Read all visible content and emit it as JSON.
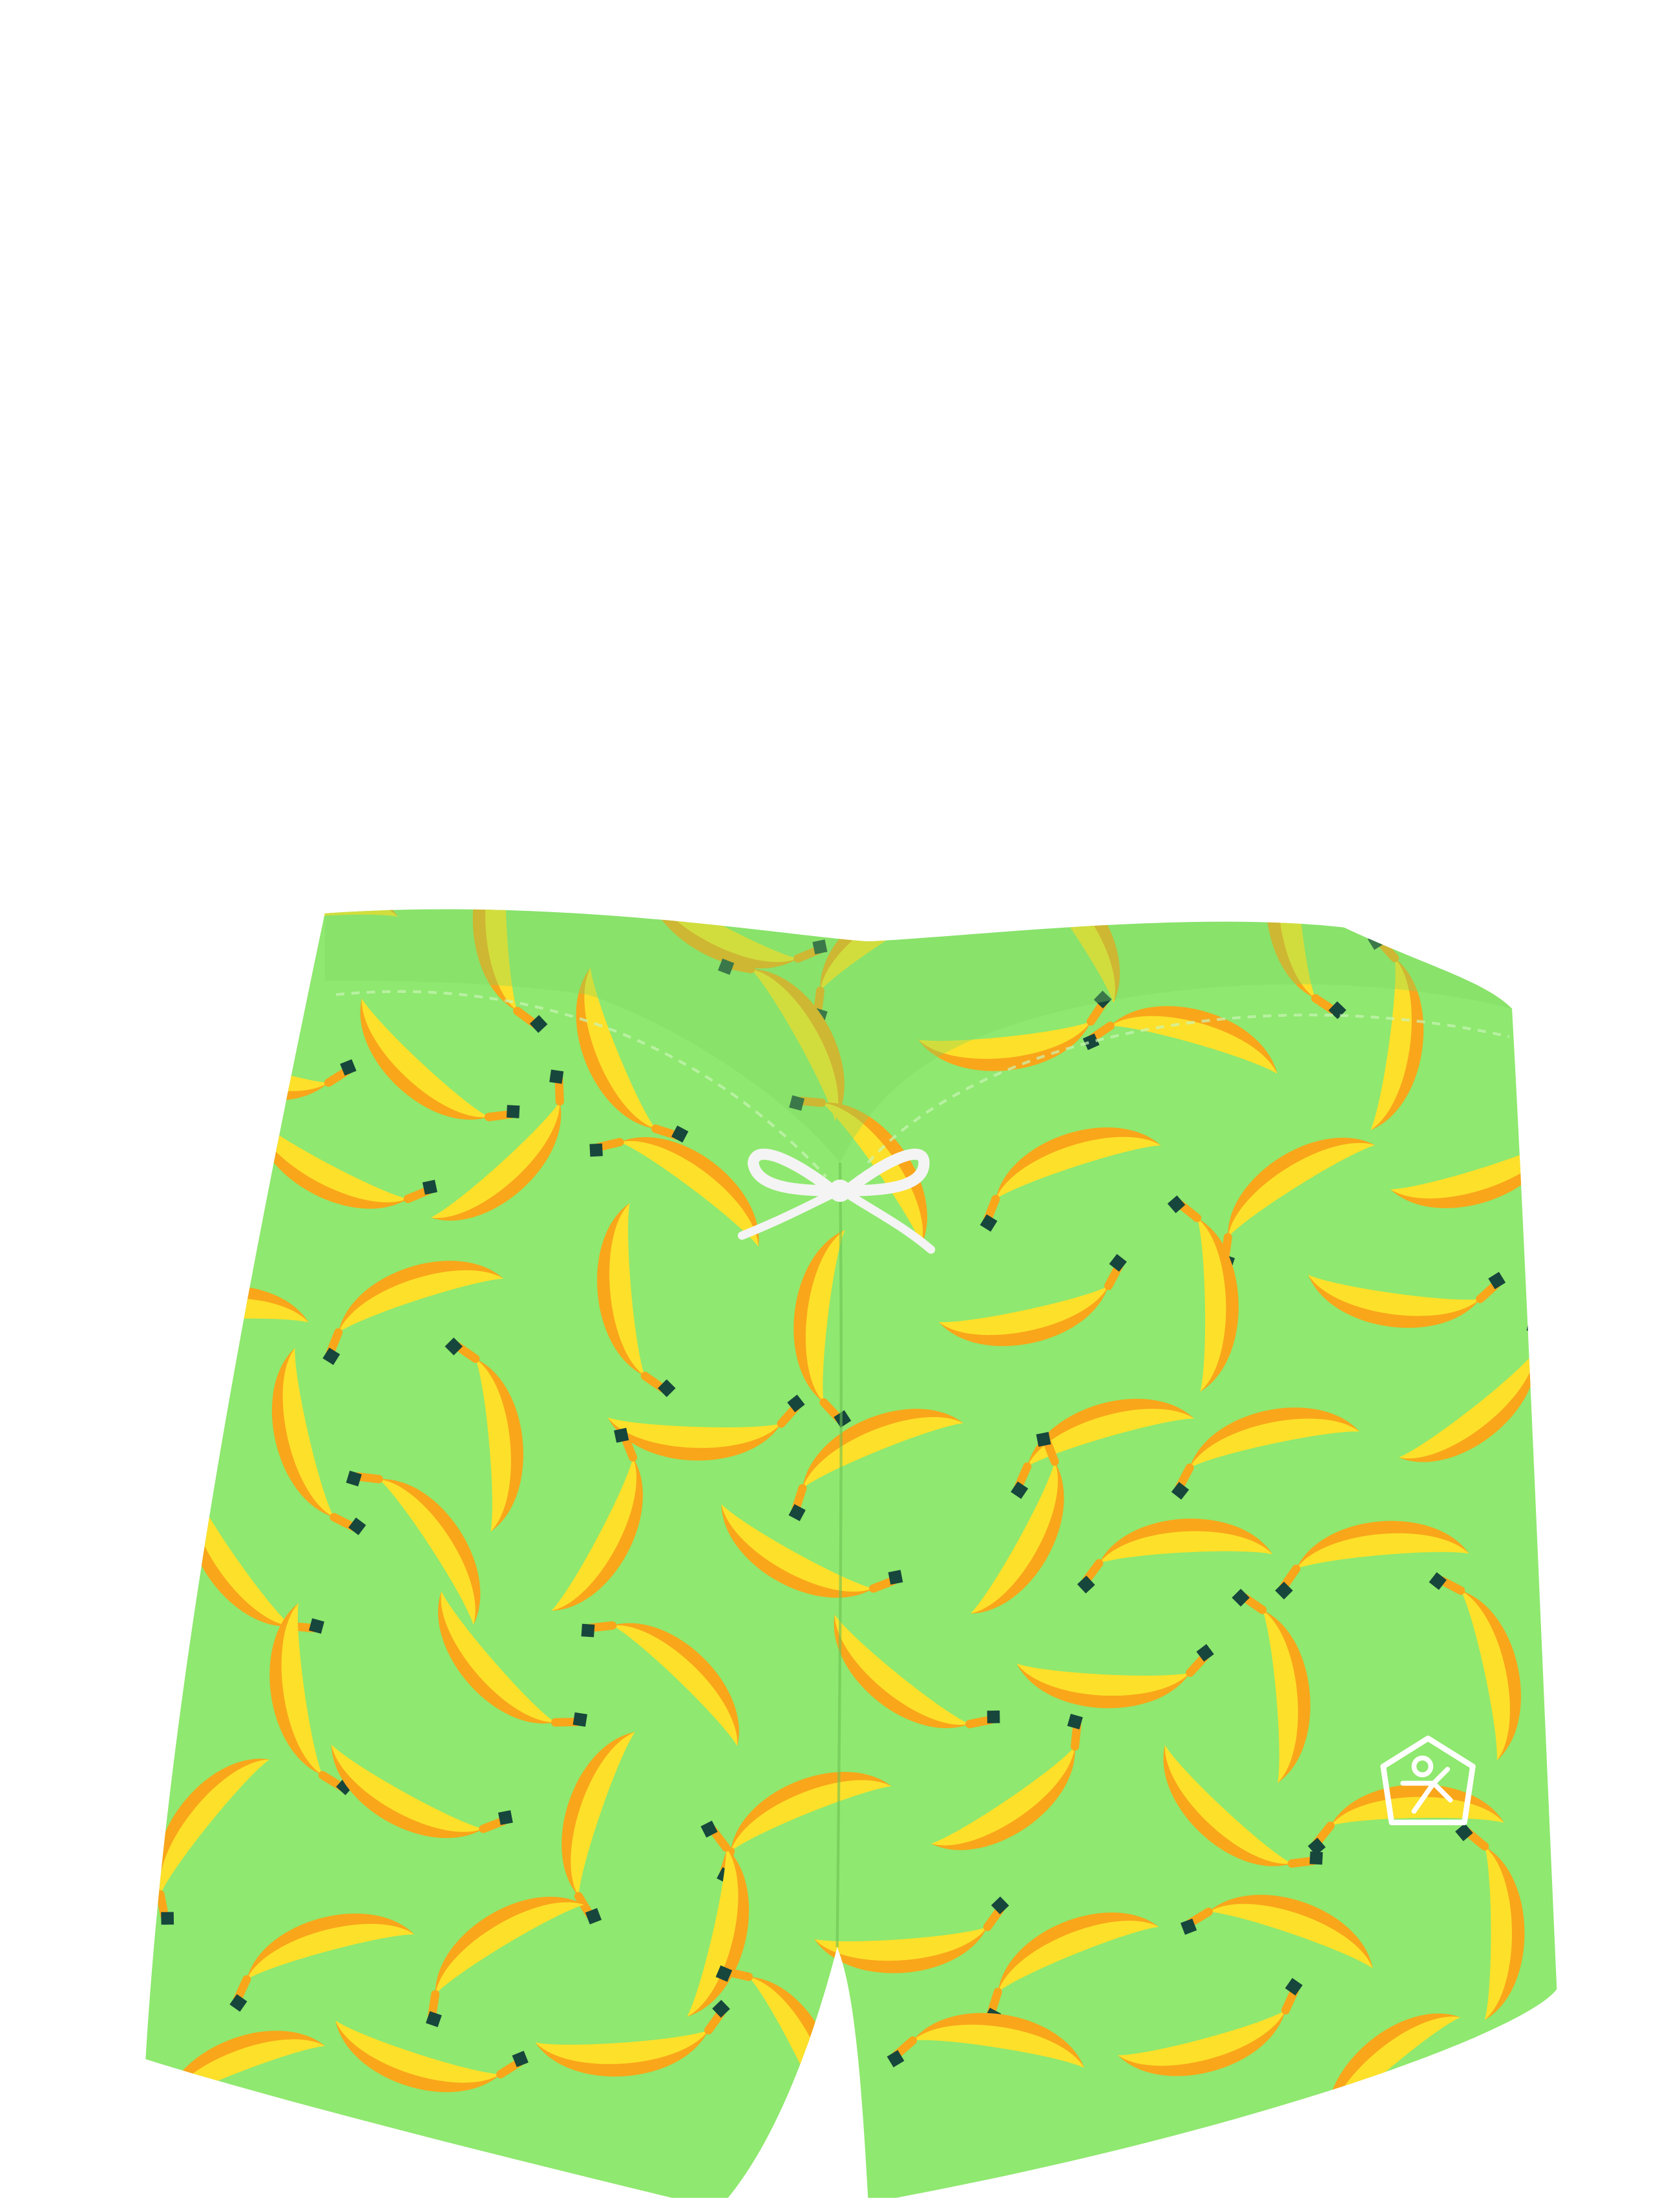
{
  "product": {
    "colors": {
      "background": "#ffffff",
      "fabric": "#8fe86f",
      "fabric_shadow": "#7fd862",
      "banana": "#fde02a",
      "banana_shade": "#f9a61a",
      "stem": "#17463c",
      "drawstring": "#f4f4f4",
      "logo": "#ffffff"
    },
    "icons": [
      "banana-print-icon",
      "brand-logo-icon",
      "drawstring-bow-icon"
    ]
  }
}
